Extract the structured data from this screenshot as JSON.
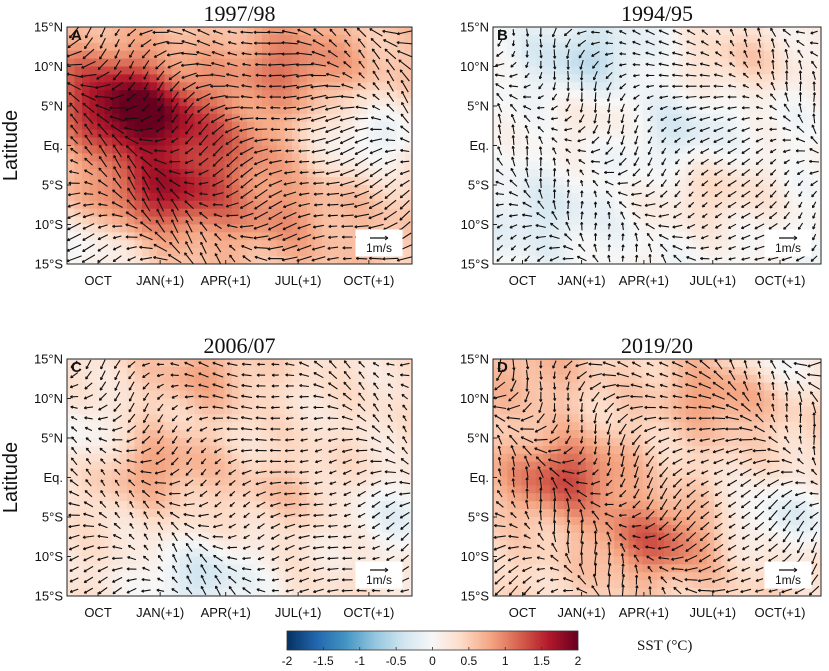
{
  "chart_data": [
    {
      "type": "heatmap",
      "letter": "A",
      "title": "1997/98",
      "ylabel": "Latitude",
      "y_ticks": [
        "15°N",
        "10°N",
        "5°N",
        "Eq.",
        "5°S",
        "10°S",
        "15°S"
      ],
      "x_ticks": [
        "OCT",
        "JAN(+1)",
        "APR(+1)",
        "JUL(+1)",
        "OCT(+1)"
      ],
      "ylim": [
        -15,
        15
      ],
      "x_range_months": [
        0,
        14
      ],
      "scale_label": "1m/s",
      "sst_blobs": [
        {
          "month": 3.0,
          "lat": 3.5,
          "sst": 1.6
        },
        {
          "month": 4.0,
          "lat": -6.0,
          "sst": 1.3
        },
        {
          "month": 1.5,
          "lat": 8.0,
          "sst": 0.9
        },
        {
          "month": 9.0,
          "lat": 10.0,
          "sst": 0.8
        },
        {
          "month": 6.5,
          "lat": 0.0,
          "sst": 0.7
        },
        {
          "month": 12.5,
          "lat": 1.0,
          "sst": -0.4
        },
        {
          "month": 0.3,
          "lat": -13.5,
          "sst": -0.3
        },
        {
          "month": 8.5,
          "lat": -9.0,
          "sst": 0.6
        }
      ],
      "background_sst": 0.55,
      "wind_strength": 1.0
    },
    {
      "type": "heatmap",
      "letter": "B",
      "title": "1994/95",
      "ylabel": "",
      "y_ticks": [
        "15°N",
        "10°N",
        "5°N",
        "Eq.",
        "5°S",
        "10°S",
        "15°S"
      ],
      "x_ticks": [
        "OCT",
        "JAN(+1)",
        "APR(+1)",
        "JUL(+1)",
        "OCT(+1)"
      ],
      "ylim": [
        -15,
        15
      ],
      "x_range_months": [
        0,
        14
      ],
      "scale_label": "1m/s",
      "sst_blobs": [
        {
          "month": 4.0,
          "lat": 11.0,
          "sst": -0.5
        },
        {
          "month": 10.5,
          "lat": 11.0,
          "sst": 0.5
        },
        {
          "month": 7.5,
          "lat": 2.0,
          "sst": -0.4
        },
        {
          "month": 9.5,
          "lat": -6.0,
          "sst": 0.4
        },
        {
          "month": 2.0,
          "lat": -9.0,
          "sst": -0.3
        },
        {
          "month": 5.0,
          "lat": 3.5,
          "sst": 0.3
        }
      ],
      "background_sst": 0.0,
      "wind_strength": 0.55
    },
    {
      "type": "heatmap",
      "letter": "C",
      "title": "2006/07",
      "ylabel": "Latitude",
      "y_ticks": [
        "15°N",
        "10°N",
        "5°N",
        "Eq.",
        "5°S",
        "10°S",
        "15°S"
      ],
      "x_ticks": [
        "OCT",
        "JAN(+1)",
        "APR(+1)",
        "JUL(+1)",
        "OCT(+1)"
      ],
      "ylim": [
        -15,
        15
      ],
      "x_range_months": [
        0,
        14
      ],
      "scale_label": "1m/s",
      "sst_blobs": [
        {
          "month": 3.5,
          "lat": 1.5,
          "sst": 0.7
        },
        {
          "month": 5.5,
          "lat": 13.0,
          "sst": 0.6
        },
        {
          "month": 5.5,
          "lat": -13.0,
          "sst": -0.5
        },
        {
          "month": 13.5,
          "lat": -5.0,
          "sst": -0.3
        },
        {
          "month": 0.3,
          "lat": 5.0,
          "sst": -0.2
        },
        {
          "month": 9.0,
          "lat": -2.0,
          "sst": 0.4
        }
      ],
      "background_sst": 0.3,
      "wind_strength": 0.6
    },
    {
      "type": "heatmap",
      "letter": "D",
      "title": "2019/20",
      "ylabel": "",
      "y_ticks": [
        "15°N",
        "10°N",
        "5°N",
        "Eq.",
        "5°S",
        "10°S",
        "15°S"
      ],
      "x_ticks": [
        "OCT",
        "JAN(+1)",
        "APR(+1)",
        "JUL(+1)",
        "OCT(+1)"
      ],
      "ylim": [
        -15,
        15
      ],
      "x_range_months": [
        0,
        14
      ],
      "scale_label": "1m/s",
      "sst_blobs": [
        {
          "month": 3.0,
          "lat": 0.0,
          "sst": 1.1
        },
        {
          "month": 7.0,
          "lat": -8.0,
          "sst": 1.0
        },
        {
          "month": 10.0,
          "lat": 11.0,
          "sst": 0.8
        },
        {
          "month": 12.5,
          "lat": -5.0,
          "sst": -0.4
        },
        {
          "month": 12.0,
          "lat": 14.5,
          "sst": -0.3
        },
        {
          "month": 1.5,
          "lat": 13.0,
          "sst": 0.5
        }
      ],
      "background_sst": 0.4,
      "wind_strength": 0.8
    }
  ],
  "colorbar": {
    "label": "SST (°C)",
    "ticks": [
      "-2",
      "-1.5",
      "-1",
      "-0.5",
      "0",
      "0.5",
      "1",
      "1.5",
      "2"
    ],
    "range": [
      -2,
      2
    ],
    "colors": [
      "#053061",
      "#2166ac",
      "#4393c3",
      "#92c5de",
      "#d1e5f0",
      "#f7f7f7",
      "#fddbc7",
      "#f4a582",
      "#d6604d",
      "#b2182b",
      "#67001f"
    ]
  }
}
